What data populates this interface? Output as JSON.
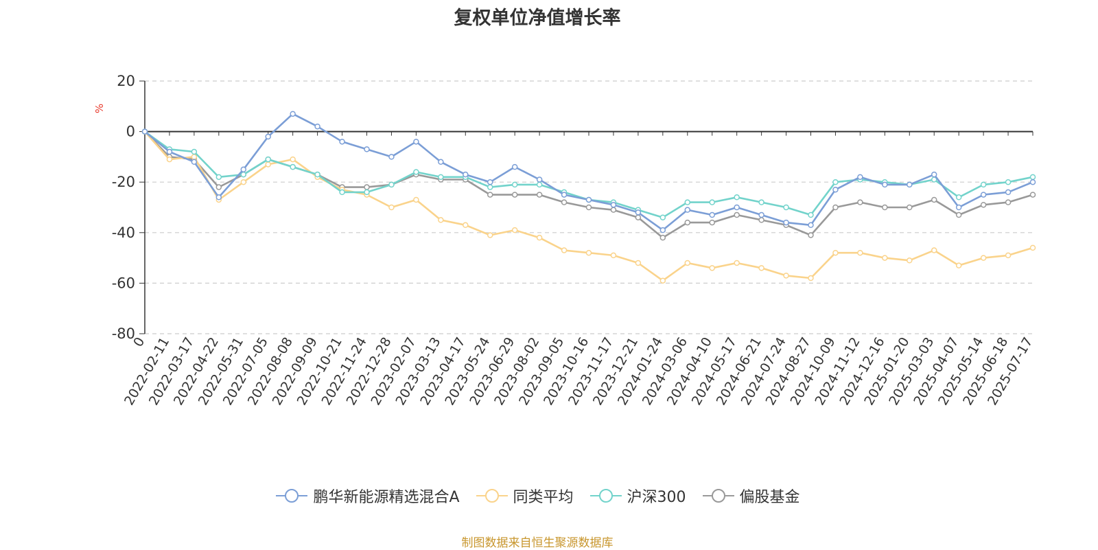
{
  "chart_data": {
    "type": "line",
    "title": "复权单位净值增长率",
    "ylabel": "%",
    "ylim": [
      -80,
      20
    ],
    "yticks": [
      20,
      0,
      -20,
      -40,
      -60,
      -80
    ],
    "grid": true,
    "legend_position": "bottom",
    "x": [
      "0",
      "2022-02-11",
      "2022-03-17",
      "2022-04-22",
      "2022-05-31",
      "2022-07-05",
      "2022-08-08",
      "2022-09-09",
      "2022-10-21",
      "2022-11-24",
      "2022-12-28",
      "2023-02-07",
      "2023-03-13",
      "2023-04-17",
      "2023-05-24",
      "2023-06-29",
      "2023-08-02",
      "2023-09-05",
      "2023-10-16",
      "2023-11-17",
      "2023-12-21",
      "2024-01-24",
      "2024-03-06",
      "2024-04-10",
      "2024-05-17",
      "2024-06-21",
      "2024-07-24",
      "2024-08-27",
      "2024-10-09",
      "2024-11-12",
      "2024-12-16",
      "2025-01-20",
      "2025-03-03",
      "2025-04-07",
      "2025-05-14",
      "2025-06-18",
      "2025-07-17"
    ],
    "series": [
      {
        "name": "鹏华新能源精选混合A",
        "color": "#7b9ed6",
        "values": [
          0,
          -8,
          -12,
          -26,
          -15,
          -2,
          7,
          2,
          -4,
          -7,
          -10,
          -4,
          -12,
          -17,
          -20,
          -14,
          -19,
          -25,
          -27,
          -29,
          -32,
          -39,
          -31,
          -33,
          -30,
          -33,
          -36,
          -37,
          -23,
          -18,
          -21,
          -21,
          -17,
          -30,
          -25,
          -24,
          -20
        ]
      },
      {
        "name": "同类平均",
        "color": "#fad38b",
        "values": [
          0,
          -11,
          -10,
          -27,
          -20,
          -13,
          -11,
          -18,
          -23,
          -25,
          -30,
          -27,
          -35,
          -37,
          -41,
          -39,
          -42,
          -47,
          -48,
          -49,
          -52,
          -59,
          -52,
          -54,
          -52,
          -54,
          -57,
          -58,
          -48,
          -48,
          -50,
          -51,
          -47,
          -53,
          -50,
          -49,
          -46
        ]
      },
      {
        "name": "沪深300",
        "color": "#72d3cb",
        "values": [
          0,
          -7,
          -8,
          -18,
          -17,
          -11,
          -14,
          -17,
          -24,
          -24,
          -21,
          -16,
          -18,
          -18,
          -22,
          -21,
          -21,
          -24,
          -27,
          -28,
          -31,
          -34,
          -28,
          -28,
          -26,
          -28,
          -30,
          -33,
          -20,
          -19,
          -20,
          -21,
          -19,
          -26,
          -21,
          -20,
          -18
        ]
      },
      {
        "name": "偏股基金",
        "color": "#999999",
        "values": [
          0,
          -10,
          -11,
          -22,
          -17,
          -11,
          -14,
          -17,
          -22,
          -22,
          -21,
          -17,
          -19,
          -19,
          -25,
          -25,
          -25,
          -28,
          -30,
          -31,
          -34,
          -42,
          -36,
          -36,
          -33,
          -35,
          -37,
          -41,
          -30,
          -28,
          -30,
          -30,
          -27,
          -33,
          -29,
          -28,
          -25
        ]
      }
    ]
  },
  "source_note": {
    "text": "制图数据来自恒生聚源数据库",
    "color": "#c8962d"
  },
  "axis_colors": {
    "axis_line": "#333333",
    "grid_line": "#cccccc",
    "ylabel": "#e8392b"
  }
}
